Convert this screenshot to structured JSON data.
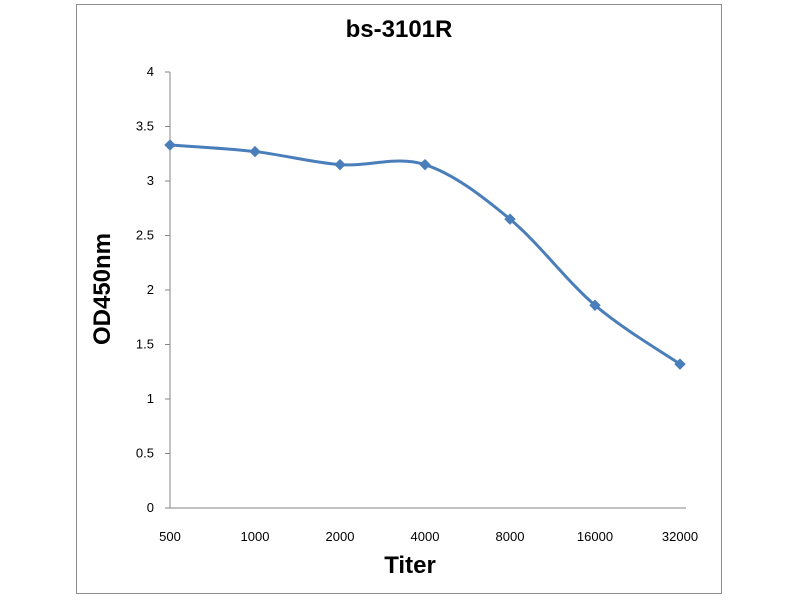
{
  "chart_data": {
    "type": "line",
    "title": "bs-3101R",
    "xlabel": "Titer",
    "ylabel": "OD450nm",
    "categories": [
      "500",
      "1000",
      "2000",
      "4000",
      "8000",
      "16000",
      "32000"
    ],
    "series": [
      {
        "values": [
          3.33,
          3.27,
          3.15,
          3.15,
          2.65,
          1.86,
          1.32
        ],
        "color": "#4a7ebb",
        "marker": "diamond"
      }
    ],
    "ylim": [
      0,
      4
    ],
    "yticks": [
      "0",
      "0.5",
      "1",
      "1.5",
      "2",
      "2.5",
      "3",
      "3.5",
      "4"
    ],
    "grid": false,
    "legend": "none",
    "smooth": true
  }
}
